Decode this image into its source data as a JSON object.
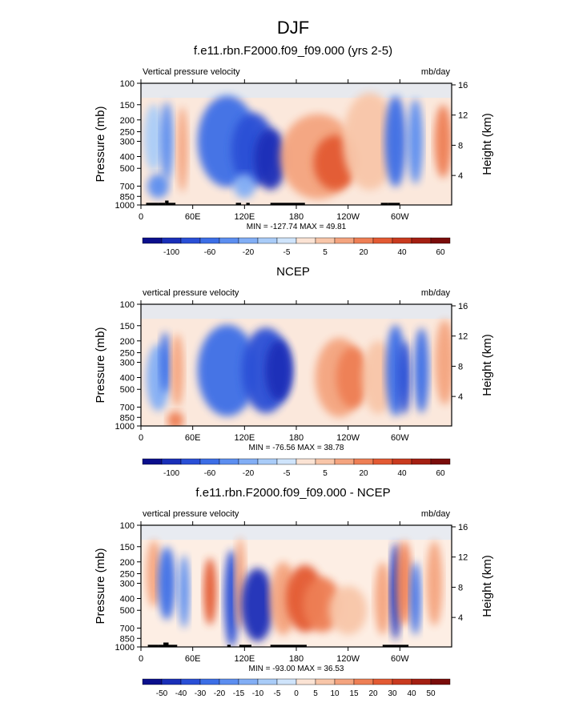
{
  "page_title": "DJF",
  "scale_bar_labels_a": [
    "-100",
    "-60",
    "-20",
    "-5",
    "5",
    "20",
    "40",
    "60"
  ],
  "scale_bar_colors": [
    "#0b0f8c",
    "#1a2fb8",
    "#2a4fd6",
    "#3c6ee6",
    "#5c8ef0",
    "#82aef5",
    "#a9ccf8",
    "#cfe4fb",
    "#fbe3d4",
    "#f8c6a9",
    "#f4a47f",
    "#ee7f55",
    "#e35a33",
    "#c93a1f",
    "#a41f12",
    "#7a0c0a"
  ],
  "chart_data": [
    {
      "type": "heatmap",
      "title": "f.e11.rbn.F2000.f09_f09.000 (yrs 2-5)",
      "left_label": "Vertical pressure velocity",
      "right_label": "mb/day",
      "ylabel": "Pressure (mb)",
      "y2label": "Height (km)",
      "x_ticks": [
        "0",
        "60E",
        "120E",
        "180",
        "120W",
        "60W"
      ],
      "y_ticks": [
        "100",
        "150",
        "200",
        "250",
        "300",
        "400",
        "500",
        "700",
        "850",
        "1000"
      ],
      "y2_ticks": [
        "16",
        "12",
        "8",
        "4"
      ],
      "stats": "MIN = -127.74  MAX =  49.81",
      "colorbar_labels": [
        "-100",
        "-60",
        "-20",
        "-5",
        "5",
        "20",
        "40",
        "60"
      ],
      "units": "mb/day",
      "xlim_deg_east": [
        0,
        360
      ],
      "ylim_mb": [
        1000,
        100
      ]
    },
    {
      "type": "heatmap",
      "title": "NCEP",
      "left_label": "vertical pressure velocity",
      "right_label": "mb/day",
      "ylabel": "Pressure (mb)",
      "y2label": "Height (km)",
      "x_ticks": [
        "0",
        "60E",
        "120E",
        "180",
        "120W",
        "60W"
      ],
      "y_ticks": [
        "100",
        "150",
        "200",
        "250",
        "300",
        "400",
        "500",
        "700",
        "850",
        "1000"
      ],
      "y2_ticks": [
        "16",
        "12",
        "8",
        "4"
      ],
      "stats": "MIN = -76.56  MAX =  38.78",
      "colorbar_labels": [
        "-100",
        "-60",
        "-20",
        "-5",
        "5",
        "20",
        "40",
        "60"
      ],
      "units": "mb/day",
      "xlim_deg_east": [
        0,
        360
      ],
      "ylim_mb": [
        1000,
        100
      ]
    },
    {
      "type": "heatmap",
      "title": "f.e11.rbn.F2000.f09_f09.000 - NCEP",
      "left_label": "vertical pressure velocity",
      "right_label": "mb/day",
      "ylabel": "Pressure (mb)",
      "y2label": "Height (km)",
      "x_ticks": [
        "0",
        "60E",
        "120E",
        "180",
        "120W",
        "60W"
      ],
      "y_ticks": [
        "100",
        "150",
        "200",
        "250",
        "300",
        "400",
        "500",
        "700",
        "850",
        "1000"
      ],
      "y2_ticks": [
        "16",
        "12",
        "8",
        "4"
      ],
      "stats": "MIN = -93.00  MAX =  36.53",
      "colorbar_labels": [
        "-50",
        "-40",
        "-30",
        "-20",
        "-15",
        "-10",
        "-5",
        "0",
        "5",
        "10",
        "15",
        "20",
        "30",
        "40",
        "50"
      ],
      "units": "mb/day",
      "xlim_deg_east": [
        0,
        360
      ],
      "ylim_mb": [
        1000,
        100
      ]
    }
  ]
}
